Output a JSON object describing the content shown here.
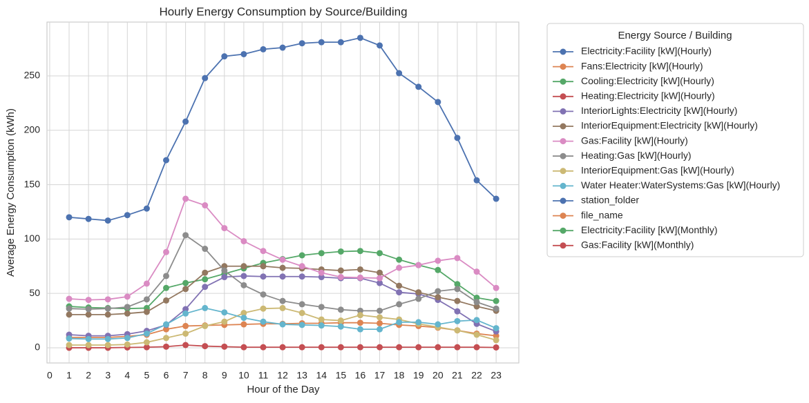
{
  "chart_data": {
    "type": "line",
    "title": "Hourly Energy Consumption by Source/Building",
    "x_label": "Hour of the Day",
    "y_label": "Average Energy Consumption (kWh)",
    "legend_title": "Energy Source / Building",
    "legend": "outside right",
    "grid": true,
    "x": [
      1,
      2,
      3,
      4,
      5,
      6,
      7,
      8,
      9,
      10,
      11,
      12,
      13,
      14,
      15,
      16,
      17,
      18,
      19,
      20,
      21,
      22,
      23
    ],
    "xlim": [
      -0.14,
      24.17
    ],
    "xticks": [
      0,
      1,
      2,
      3,
      4,
      5,
      6,
      7,
      8,
      9,
      10,
      11,
      12,
      13,
      14,
      15,
      16,
      17,
      18,
      19,
      20,
      21,
      22,
      23
    ],
    "ylim": [
      -14,
      299.5
    ],
    "yticks": [
      0,
      50,
      100,
      150,
      200,
      250
    ],
    "series": [
      {
        "name": "Electricity:Facility [kW](Hourly)",
        "color": "#4c72b0",
        "values": [
          120,
          118.5,
          117,
          122,
          128,
          172.5,
          208,
          248,
          268,
          270,
          274.5,
          276,
          280,
          281,
          281,
          285,
          278,
          252.5,
          240,
          226,
          193,
          154,
          137
        ]
      },
      {
        "name": "Fans:Electricity [kW](Hourly)",
        "color": "#dd8452",
        "values": [
          9.5,
          9.5,
          9.5,
          10.5,
          12,
          17,
          20,
          20.5,
          21,
          21.5,
          22,
          22,
          22.5,
          22.5,
          23,
          23,
          22.5,
          21,
          20,
          18.5,
          16,
          13,
          11
        ]
      },
      {
        "name": "Cooling:Electricity [kW](Hourly)",
        "color": "#55a868",
        "values": [
          38,
          37,
          36.5,
          36,
          36.5,
          55,
          59.5,
          63,
          68,
          73,
          78,
          81.5,
          85,
          87,
          88.5,
          89,
          87,
          81,
          76,
          71.5,
          58.5,
          46,
          43
        ]
      },
      {
        "name": "Heating:Electricity [kW](Hourly)",
        "color": "#c44e52",
        "values": [
          0,
          0,
          0,
          0.3,
          0.5,
          1,
          2.5,
          1.5,
          1,
          0.5,
          0.5,
          0.5,
          0.5,
          0.5,
          0.5,
          0.5,
          0.5,
          0.5,
          0.5,
          0.5,
          0.5,
          0.5,
          0.3
        ]
      },
      {
        "name": "InteriorLights:Electricity [kW](Hourly)",
        "color": "#8172b3",
        "values": [
          12,
          11,
          11,
          12.5,
          15.5,
          21,
          35.5,
          56,
          65,
          66,
          65.5,
          65.5,
          65.5,
          65,
          64,
          64,
          59.5,
          51,
          49.5,
          44,
          33.5,
          22,
          15
        ]
      },
      {
        "name": "InteriorEquipment:Electricity [kW](Hourly)",
        "color": "#937860",
        "values": [
          30.5,
          30.5,
          30.5,
          31.5,
          33,
          43.5,
          54,
          69,
          75,
          75,
          75,
          73.5,
          73,
          72,
          71,
          72,
          69,
          57,
          51,
          46.5,
          43,
          38,
          34
        ]
      },
      {
        "name": "Gas:Facility [kW](Hourly)",
        "color": "#da8bc3",
        "values": [
          45,
          44,
          44.5,
          47,
          59,
          88,
          137,
          131,
          110,
          98,
          89,
          81,
          75,
          69,
          65,
          64.5,
          64,
          73.5,
          76,
          80,
          82.5,
          70,
          55
        ]
      },
      {
        "name": "Heating:Gas [kW](Hourly)",
        "color": "#8c8c8c",
        "values": [
          36,
          35.5,
          36,
          37.5,
          44.5,
          66,
          103.5,
          91,
          71,
          57.5,
          49,
          43,
          40,
          37.5,
          35,
          34,
          34,
          40,
          45,
          52,
          54,
          42,
          36
        ]
      },
      {
        "name": "InteriorEquipment:Gas [kW](Hourly)",
        "color": "#ccb974",
        "values": [
          2.5,
          2.5,
          2.5,
          3,
          5,
          9,
          13,
          20,
          24,
          32,
          36,
          36.5,
          32,
          26,
          25,
          30,
          28,
          26,
          22,
          19,
          16,
          12,
          7
        ]
      },
      {
        "name": "Water Heater:WaterSystems:Gas [kW](Hourly)",
        "color": "#64b5cd",
        "values": [
          8.5,
          8,
          8,
          9,
          13,
          21.5,
          31.5,
          36.5,
          32.5,
          27.5,
          24,
          21.5,
          21,
          20.5,
          19.5,
          17,
          17,
          23.5,
          23.5,
          21.5,
          24.5,
          25.5,
          18
        ]
      },
      {
        "name": "station_folder",
        "color": "#4c72b0",
        "values": [
          null,
          null,
          null,
          null,
          null,
          null,
          null,
          null,
          null,
          null,
          null,
          null,
          null,
          null,
          null,
          null,
          null,
          null,
          null,
          null,
          null,
          null,
          null
        ]
      },
      {
        "name": "file_name",
        "color": "#dd8452",
        "values": [
          null,
          null,
          null,
          null,
          null,
          null,
          null,
          null,
          null,
          null,
          null,
          null,
          null,
          null,
          null,
          null,
          null,
          null,
          null,
          null,
          null,
          null,
          null
        ]
      },
      {
        "name": "Electricity:Facility [kW](Monthly)",
        "color": "#55a868",
        "values": [
          null,
          null,
          null,
          null,
          null,
          null,
          null,
          null,
          null,
          null,
          null,
          null,
          null,
          null,
          null,
          null,
          null,
          null,
          null,
          null,
          null,
          null,
          null
        ]
      },
      {
        "name": "Gas:Facility [kW](Monthly)",
        "color": "#c44e52",
        "values": [
          null,
          null,
          null,
          null,
          null,
          null,
          null,
          null,
          null,
          null,
          null,
          null,
          null,
          null,
          null,
          null,
          null,
          null,
          null,
          null,
          null,
          null,
          null
        ]
      }
    ]
  }
}
